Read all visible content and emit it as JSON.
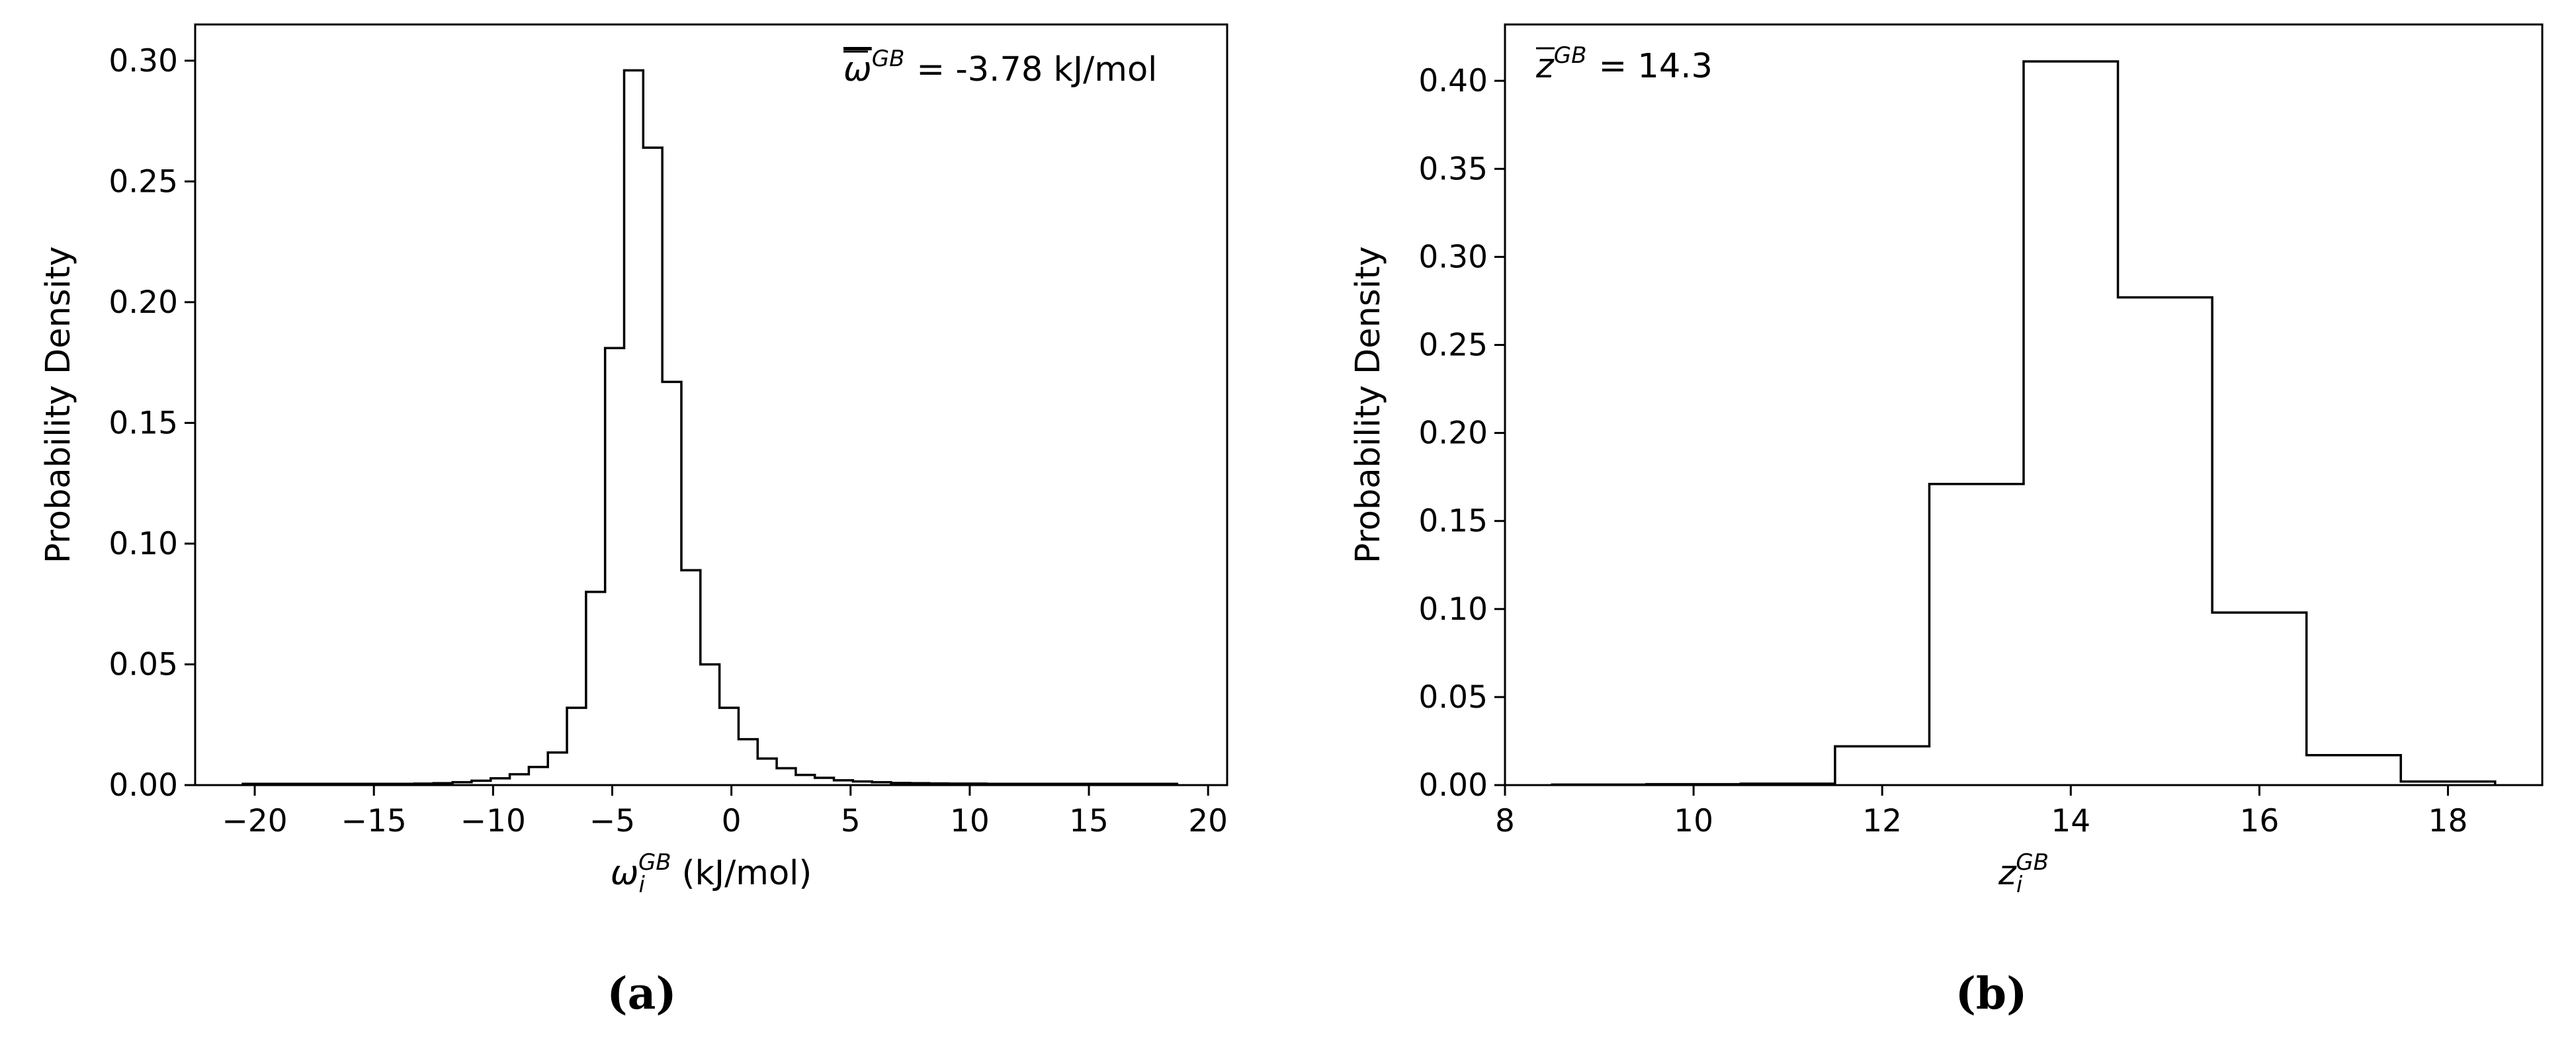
{
  "chart_data": [
    {
      "type": "histogram",
      "panel": "a",
      "caption": "(a)",
      "xlabel": {
        "base": "ω",
        "sub": "i",
        "sup": "GB",
        "unit": "(kJ/mol)"
      },
      "ylabel": "Probability Density",
      "annotation": {
        "symbol": "ω",
        "sup": "GB",
        "text": "= -3.78 kJ/mol"
      },
      "xlim": [
        -22.5,
        20.8
      ],
      "ylim": [
        0,
        0.315
      ],
      "xticks": [
        -20,
        -15,
        -10,
        -5,
        0,
        5,
        10,
        15,
        20
      ],
      "xtick_labels": [
        "−20",
        "−15",
        "−10",
        "−5",
        "0",
        "5",
        "10",
        "15",
        "20"
      ],
      "yticks": [
        0.0,
        0.05,
        0.1,
        0.15,
        0.2,
        0.25,
        0.3
      ],
      "ytick_labels": [
        "0.00",
        "0.05",
        "0.10",
        "0.15",
        "0.20",
        "0.25",
        "0.30"
      ],
      "bin_edges": [
        -20.5,
        -19.7,
        -18.9,
        -18.1,
        -17.3,
        -16.5,
        -15.7,
        -14.9,
        -14.1,
        -13.3,
        -12.5,
        -11.7,
        -10.9,
        -10.1,
        -9.3,
        -8.5,
        -7.7,
        -6.9,
        -6.1,
        -5.3,
        -4.5,
        -3.7,
        -2.9,
        -2.1,
        -1.3,
        -0.5,
        0.3,
        1.1,
        1.9,
        2.7,
        3.5,
        4.3,
        5.1,
        5.9,
        6.7,
        7.5,
        8.3,
        9.1,
        9.9,
        10.7,
        11.5,
        12.3,
        13.1,
        13.9,
        14.7,
        15.5,
        16.3,
        17.1,
        17.9,
        18.7
      ],
      "values": [
        0.0005,
        0.0005,
        0.0005,
        0.0005,
        0.0005,
        0.0005,
        0.0005,
        0.0005,
        0.0005,
        0.0006,
        0.0008,
        0.0012,
        0.0018,
        0.0028,
        0.0045,
        0.0075,
        0.0135,
        0.032,
        0.08,
        0.181,
        0.296,
        0.264,
        0.167,
        0.089,
        0.05,
        0.032,
        0.019,
        0.011,
        0.007,
        0.0042,
        0.003,
        0.002,
        0.0015,
        0.0012,
        0.0009,
        0.0008,
        0.0007,
        0.0006,
        0.0006,
        0.0005,
        0.0005,
        0.0005,
        0.0005,
        0.0005,
        0.0005,
        0.0005,
        0.0005,
        0.0005,
        0.0005
      ]
    },
    {
      "type": "histogram",
      "panel": "b",
      "caption": "(b)",
      "xlabel": {
        "base": "z",
        "sub": "i",
        "sup": "GB",
        "unit": ""
      },
      "ylabel": "Probability Density",
      "annotation": {
        "symbol": "z",
        "sup": "GB",
        "text": "= 14.3"
      },
      "xlim": [
        8,
        19
      ],
      "ylim": [
        0,
        0.432
      ],
      "xticks": [
        8,
        10,
        12,
        14,
        16,
        18
      ],
      "xtick_labels": [
        "8",
        "10",
        "12",
        "14",
        "16",
        "18"
      ],
      "yticks": [
        0.0,
        0.05,
        0.1,
        0.15,
        0.2,
        0.25,
        0.3,
        0.35,
        0.4
      ],
      "ytick_labels": [
        "0.00",
        "0.05",
        "0.10",
        "0.15",
        "0.20",
        "0.25",
        "0.30",
        "0.35",
        "0.40"
      ],
      "bin_edges": [
        8.5,
        9.5,
        10.5,
        11.5,
        12.5,
        13.5,
        14.5,
        15.5,
        16.5,
        17.5,
        18.5
      ],
      "values": [
        0.0003,
        0.0005,
        0.0008,
        0.022,
        0.171,
        0.411,
        0.277,
        0.098,
        0.017,
        0.002
      ]
    }
  ]
}
